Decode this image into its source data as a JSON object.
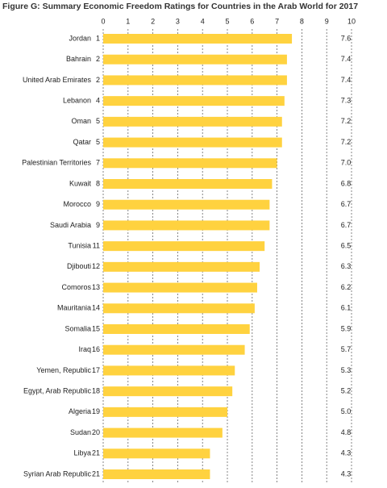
{
  "chart_data": {
    "type": "bar",
    "orientation": "horizontal",
    "title": "Figure G: Summary Economic Freedom Ratings for Countries in the Arab World for 2017",
    "categories": [
      "Jordan",
      "Bahrain",
      "United Arab Emirates",
      "Lebanon",
      "Oman",
      "Qatar",
      "Palestinian Territories",
      "Kuwait",
      "Morocco",
      "Saudi Arabia",
      "Tunisia",
      "Djibouti",
      "Comoros",
      "Mauritania",
      "Somalia",
      "Iraq",
      "Yemen, Republic",
      "Egypt, Arab Republic",
      "Algeria",
      "Sudan",
      "Libya",
      "Syrian Arab Republic"
    ],
    "ranks": [
      1,
      2,
      2,
      4,
      5,
      5,
      7,
      8,
      9,
      9,
      11,
      12,
      13,
      14,
      15,
      16,
      17,
      18,
      19,
      20,
      21,
      21
    ],
    "values": [
      7.6,
      7.4,
      7.4,
      7.3,
      7.2,
      7.2,
      7.0,
      6.8,
      6.7,
      6.7,
      6.5,
      6.3,
      6.2,
      6.1,
      5.9,
      5.7,
      5.3,
      5.2,
      5.0,
      4.8,
      4.3,
      4.3
    ],
    "value_labels": [
      "7.6",
      "7.4",
      "7.4",
      "7.3",
      "7.2",
      "7.2",
      "7.0",
      "6.8",
      "6.7",
      "6.7",
      "6.5",
      "6.3",
      "6.2",
      "6.1",
      "5.9",
      "5.7",
      "5.3",
      "5.2",
      "5.0",
      "4.8",
      "4.3",
      "4.3"
    ],
    "color": "#ffd23f",
    "xlim": [
      0,
      10
    ],
    "xticks": [
      0,
      1,
      2,
      3,
      4,
      5,
      6,
      7,
      8,
      9,
      10
    ],
    "grid": true
  }
}
